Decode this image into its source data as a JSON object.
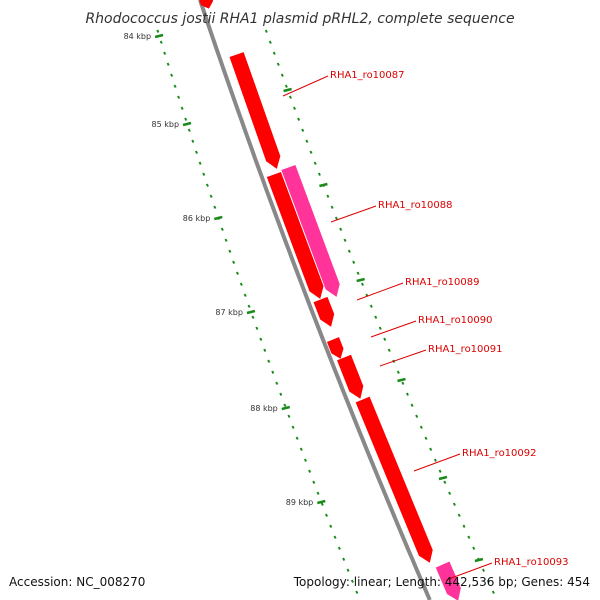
{
  "title": "Rhodococcus jostii RHA1 plasmid pRHL2, complete sequence",
  "accession_text": "Accession: NC_008270",
  "summary_text": "Topology: linear; Length: 442,536 bp; Genes: 454",
  "colors": {
    "backbone": "#888888",
    "gene_red": "#ff0000",
    "gene_pink": "#ff3399",
    "label_line": "#dd0000",
    "dot": "#1a8a1a"
  },
  "scale_labels": [
    "84 kbp",
    "85 kbp",
    "86 kbp",
    "87 kbp",
    "88 kbp",
    "89 kbp"
  ],
  "genes": [
    {
      "id": "RHA1_ro10087",
      "color": "red"
    },
    {
      "id": "RHA1_ro10088",
      "color": "pink"
    },
    {
      "id": "RHA1_ro10089",
      "color": "red"
    },
    {
      "id": "RHA1_ro10090",
      "color": "red"
    },
    {
      "id": "RHA1_ro10091",
      "color": "red"
    },
    {
      "id": "RHA1_ro10092",
      "color": "red"
    },
    {
      "id": "RHA1_ro10093",
      "color": "pink"
    }
  ]
}
